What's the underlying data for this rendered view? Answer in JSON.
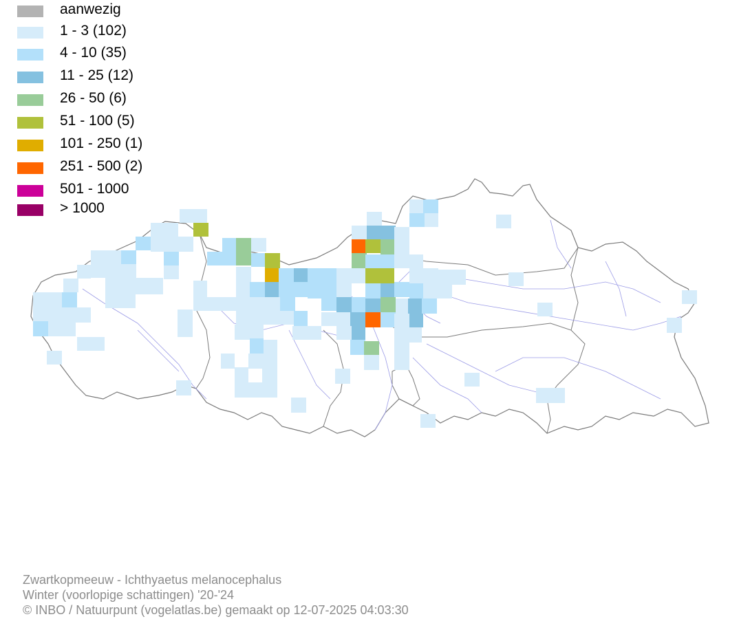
{
  "legend": {
    "items": [
      {
        "label": "aanwezig",
        "color": "#b3b3b3"
      },
      {
        "label": "1 - 3 (102)",
        "color": "#d6ecfa"
      },
      {
        "label": "4 - 10 (35)",
        "color": "#b3e0fa"
      },
      {
        "label": "11 - 25 (12)",
        "color": "#85c1e0"
      },
      {
        "label": "26 - 50 (6)",
        "color": "#99cc99"
      },
      {
        "label": "51 - 100 (5)",
        "color": "#b0c13b"
      },
      {
        "label": "101 - 250 (1)",
        "color": "#e0ad00"
      },
      {
        "label": "251 - 500 (2)",
        "color": "#ff6600"
      },
      {
        "label": "501 - 1000",
        "color": "#cc0099"
      },
      {
        "label": "> 1000",
        "color": "#990066"
      }
    ]
  },
  "footer": {
    "species": "Zwartkopmeeuw - Ichthyaetus melanocephalus",
    "period": "Winter (voorlopige schattingen) '20-'24",
    "credit": "© INBO / Natuurpunt (vogelatlas.be) gemaakt op 12-07-2025 04:03:30"
  },
  "map": {
    "border_color": "#7a7a7a",
    "river_color": "#9a9ae6",
    "cell_classes": [
      "1-3",
      "4-10",
      "11-25",
      "26-50",
      "51-100",
      "101-250",
      "251-500"
    ]
  }
}
